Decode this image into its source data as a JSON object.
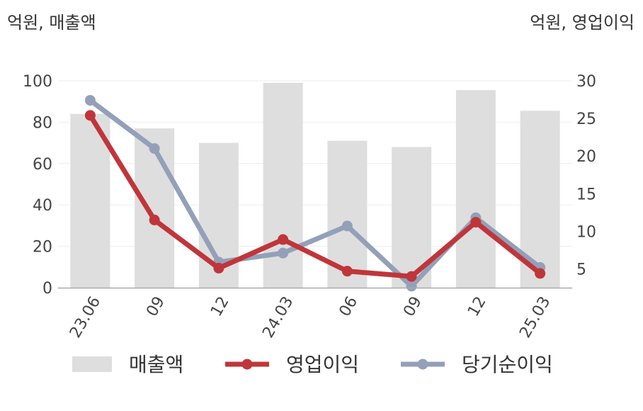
{
  "units": {
    "left": "억원, 매출액",
    "right": "억원, 영업이익"
  },
  "colors": {
    "bar": "#dedede",
    "operating": "#c0353a",
    "net": "#93a0b8",
    "axis": "#aaaaaa",
    "grid": "#eeeeee"
  },
  "chart_data": {
    "type": "bar+line",
    "categories": [
      "23.06",
      "09",
      "12",
      "24.03",
      "06",
      "09",
      "12",
      "25.03"
    ],
    "left_axis": {
      "ylim": [
        0,
        100
      ],
      "ticks": [
        "0",
        "20",
        "40",
        "60",
        "80",
        "100"
      ]
    },
    "right_axis": {
      "ylim": [
        2.5,
        30
      ],
      "ticks": [
        "5",
        "10",
        "15",
        "20",
        "25",
        "30"
      ]
    },
    "series": [
      {
        "name": "매출액",
        "type": "bar",
        "axis": "left",
        "values": [
          84,
          77,
          70,
          99,
          71,
          68,
          95.5,
          85.5
        ]
      },
      {
        "name": "영업이익",
        "type": "line",
        "axis": "right",
        "values": [
          25.4,
          11.5,
          5.1,
          8.9,
          4.7,
          4.0,
          11.2,
          4.4
        ]
      },
      {
        "name": "당기순이익",
        "type": "line",
        "axis": "right",
        "values": [
          27.4,
          21.0,
          5.9,
          7.1,
          10.7,
          2.7,
          11.8,
          5.2
        ]
      }
    ],
    "legend": "bottom"
  }
}
